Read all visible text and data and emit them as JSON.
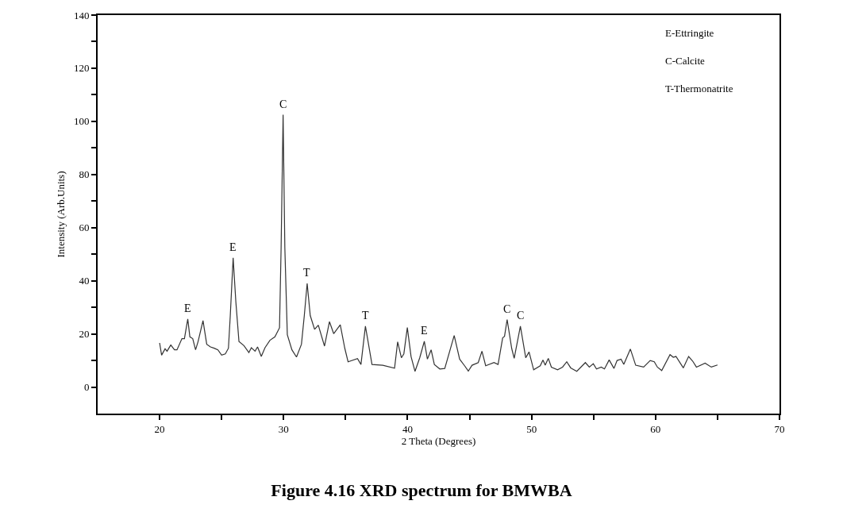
{
  "chart_data": {
    "type": "line",
    "title": "Figure 4.16 XRD spectrum for BMWBA",
    "xlabel": "2 Theta (Degrees)",
    "ylabel": "Intensity (Arb.Units)",
    "xlim": [
      15,
      70
    ],
    "ylim": [
      -10,
      140
    ],
    "xticks": [
      20,
      {
        "value": 25,
        "label": null
      },
      30,
      {
        "value": 35,
        "label": null
      },
      40,
      {
        "value": 45,
        "label": null
      },
      50,
      {
        "value": 55,
        "label": null
      },
      60,
      {
        "value": 65,
        "label": null
      },
      70
    ],
    "yticks": [
      0,
      {
        "value": 10,
        "label": null
      },
      20,
      {
        "value": 30,
        "label": null
      },
      40,
      {
        "value": 50,
        "label": null
      },
      60,
      {
        "value": 70,
        "label": null
      },
      80,
      {
        "value": 90,
        "label": null
      },
      100,
      {
        "value": 110,
        "label": null
      },
      120,
      {
        "value": 130,
        "label": null
      },
      140
    ],
    "line_style": "solid",
    "marker": "none",
    "series": [
      {
        "color": "#333333",
        "x": [
          20,
          20.16,
          20.44,
          20.6,
          20.9,
          21.2,
          21.4,
          21.8,
          22.0,
          22.27,
          22.44,
          22.67,
          22.9,
          23.1,
          23.5,
          23.8,
          24.1,
          24.4,
          24.7,
          25.0,
          25.3,
          25.55,
          25.7,
          25.93,
          26.15,
          26.4,
          26.8,
          27.2,
          27.4,
          27.7,
          27.9,
          28.2,
          28.5,
          28.9,
          29.3,
          29.67,
          29.8,
          29.96,
          30.1,
          30.3,
          30.67,
          31.04,
          31.44,
          31.67,
          31.9,
          32.15,
          32.5,
          32.8,
          33.3,
          33.7,
          34.04,
          34.57,
          34.94,
          35.2,
          35.96,
          36.24,
          36.6,
          37.13,
          38.0,
          38.95,
          39.2,
          39.5,
          39.7,
          39.98,
          40.28,
          40.6,
          40.98,
          41.35,
          41.6,
          41.9,
          42.16,
          42.6,
          43.0,
          43.76,
          44.2,
          44.6,
          44.9,
          45.2,
          45.7,
          46.0,
          46.3,
          46.97,
          47.3,
          47.67,
          47.82,
          48.03,
          48.4,
          48.6,
          49.1,
          49.53,
          49.8,
          50.17,
          50.7,
          50.92,
          51.1,
          51.35,
          51.6,
          52.1,
          52.5,
          52.84,
          53.16,
          53.65,
          54.34,
          54.66,
          54.98,
          55.24,
          55.62,
          55.88,
          56.26,
          56.65,
          56.9,
          57.22,
          57.44,
          57.97,
          58.4,
          59.04,
          59.57,
          59.9,
          60.15,
          60.5,
          61.17,
          61.43,
          61.65,
          62.24,
          62.67,
          62.99,
          63.3,
          64.0,
          64.5,
          65.0
        ],
        "values": [
          16.6,
          12,
          14.4,
          13.5,
          15.8,
          14,
          14,
          18.2,
          18.2,
          25.6,
          18.9,
          18.2,
          14,
          17.1,
          25,
          16.1,
          15.1,
          14.6,
          14,
          12,
          12.5,
          14.6,
          26.9,
          48.6,
          32,
          17.1,
          15.6,
          13,
          14.8,
          13.5,
          15.1,
          11.5,
          14.8,
          17.6,
          18.9,
          22.3,
          52.5,
          102.5,
          52.5,
          19.7,
          14,
          11.3,
          16.1,
          26.9,
          39,
          26.9,
          21.7,
          23.3,
          15.4,
          24.6,
          20.1,
          23.4,
          14.5,
          9.5,
          10.7,
          8.5,
          22.9,
          8.5,
          8.2,
          7.1,
          17,
          11,
          12.5,
          22.4,
          11.5,
          5.9,
          11,
          17.2,
          10.5,
          14,
          8.5,
          6.8,
          7,
          19.4,
          10.5,
          8,
          6,
          8.2,
          9.2,
          13.5,
          8,
          9.2,
          8.5,
          18.5,
          19.1,
          25.4,
          14.5,
          10.8,
          22.9,
          11,
          13.2,
          6.5,
          8,
          10.2,
          8.2,
          10.8,
          7.5,
          6.5,
          7.5,
          9.5,
          7.2,
          5.9,
          9.2,
          7.5,
          8.8,
          6.8,
          7.5,
          6.8,
          10.2,
          7,
          10,
          10.5,
          8.5,
          14.3,
          8.2,
          7.5,
          10,
          9.5,
          7.5,
          6.2,
          12.2,
          11.2,
          11.5,
          7.2,
          11.5,
          9.8,
          7.5,
          9,
          7.5,
          8.3
        ]
      }
    ],
    "annotations": [
      {
        "text": "E",
        "x": 22.27,
        "y": 25.6
      },
      {
        "text": "E",
        "x": 25.93,
        "y": 48.6
      },
      {
        "text": "C",
        "x": 29.96,
        "y": 102.5
      },
      {
        "text": "T",
        "x": 31.9,
        "y": 39
      },
      {
        "text": "T",
        "x": 36.6,
        "y": 22.9
      },
      {
        "text": "E",
        "x": 41.35,
        "y": 17.2
      },
      {
        "text": "C",
        "x": 48.03,
        "y": 25.4
      },
      {
        "text": "C",
        "x": 49.1,
        "y": 22.9
      },
      "E-Ettringite",
      "C-Calcite",
      "T-Thermonatrite"
    ]
  }
}
